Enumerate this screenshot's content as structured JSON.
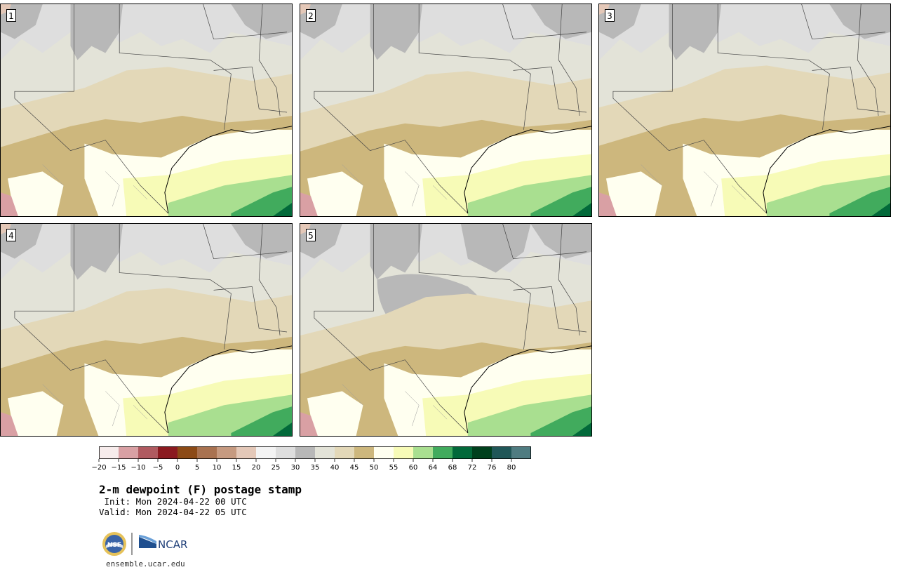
{
  "panels": [
    {
      "label": "1"
    },
    {
      "label": "2"
    },
    {
      "label": "3"
    },
    {
      "label": "4"
    },
    {
      "label": "5"
    }
  ],
  "colorbar": {
    "ticks": [
      "−20",
      "−15",
      "−10",
      "−5",
      "0",
      "5",
      "10",
      "15",
      "20",
      "25",
      "30",
      "35",
      "40",
      "45",
      "50",
      "55",
      "60",
      "64",
      "68",
      "72",
      "76",
      "80"
    ],
    "colors": [
      "#f7ecec",
      "#d9a0a4",
      "#b05a60",
      "#8b1a20",
      "#8c4a16",
      "#a97250",
      "#c69a80",
      "#e4c8b8",
      "#f3f3f3",
      "#dedede",
      "#b8b8b8",
      "#e3e3d8",
      "#e3d8b8",
      "#cdb77d",
      "#fffff0",
      "#f7fbb7",
      "#a9df90",
      "#41ab5d",
      "#02693a",
      "#00401d",
      "#205758",
      "#4f7c81"
    ]
  },
  "title": "2-m dewpoint (F) postage stamp",
  "init": " Init: Mon 2024-04-22 00 UTC",
  "valid": "Valid: Mon 2024-04-22 05 UTC",
  "logos": {
    "nsf": "NSF",
    "ncar": "NCAR"
  },
  "url": "ensemble.ucar.edu"
}
